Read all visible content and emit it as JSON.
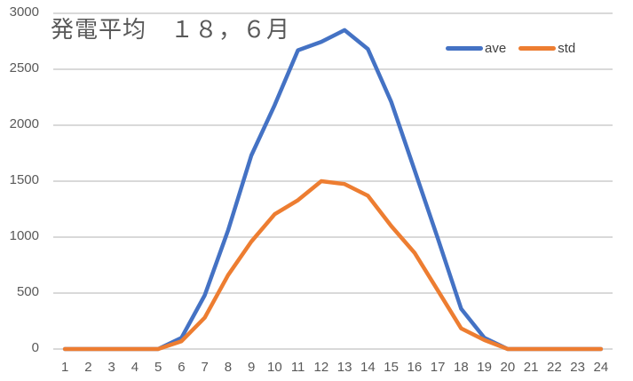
{
  "chart_data": {
    "type": "line",
    "title": "発電平均　１８，６月",
    "xlabel": "",
    "ylabel": "",
    "ylim": [
      0,
      3000
    ],
    "yticks": [
      0,
      500,
      1000,
      1500,
      2000,
      2500,
      3000
    ],
    "grid": true,
    "legend_position": "top-right",
    "x": [
      "1",
      "2",
      "3",
      "4",
      "5",
      "6",
      "7",
      "8",
      "9",
      "10",
      "11",
      "12",
      "13",
      "14",
      "15",
      "16",
      "17",
      "18",
      "19",
      "20",
      "21",
      "22",
      "23",
      "24"
    ],
    "series": [
      {
        "name": "ave",
        "color": "#4472C4",
        "values": [
          0,
          0,
          0,
          0,
          0,
          100,
          480,
          1060,
          1730,
          2180,
          2670,
          2745,
          2850,
          2680,
          2210,
          1600,
          990,
          360,
          100,
          0,
          0,
          0,
          0,
          0
        ]
      },
      {
        "name": "std",
        "color": "#ED7D31",
        "values": [
          0,
          0,
          0,
          0,
          0,
          70,
          280,
          660,
          960,
          1205,
          1330,
          1500,
          1475,
          1370,
          1100,
          860,
          525,
          185,
          80,
          0,
          0,
          0,
          0,
          0
        ]
      }
    ]
  },
  "legend": {
    "items": [
      {
        "label": "ave",
        "color": "#4472C4"
      },
      {
        "label": "std",
        "color": "#ED7D31"
      }
    ]
  },
  "style": {
    "grid_color": "#D9D9D9",
    "text_color": "#595959"
  }
}
